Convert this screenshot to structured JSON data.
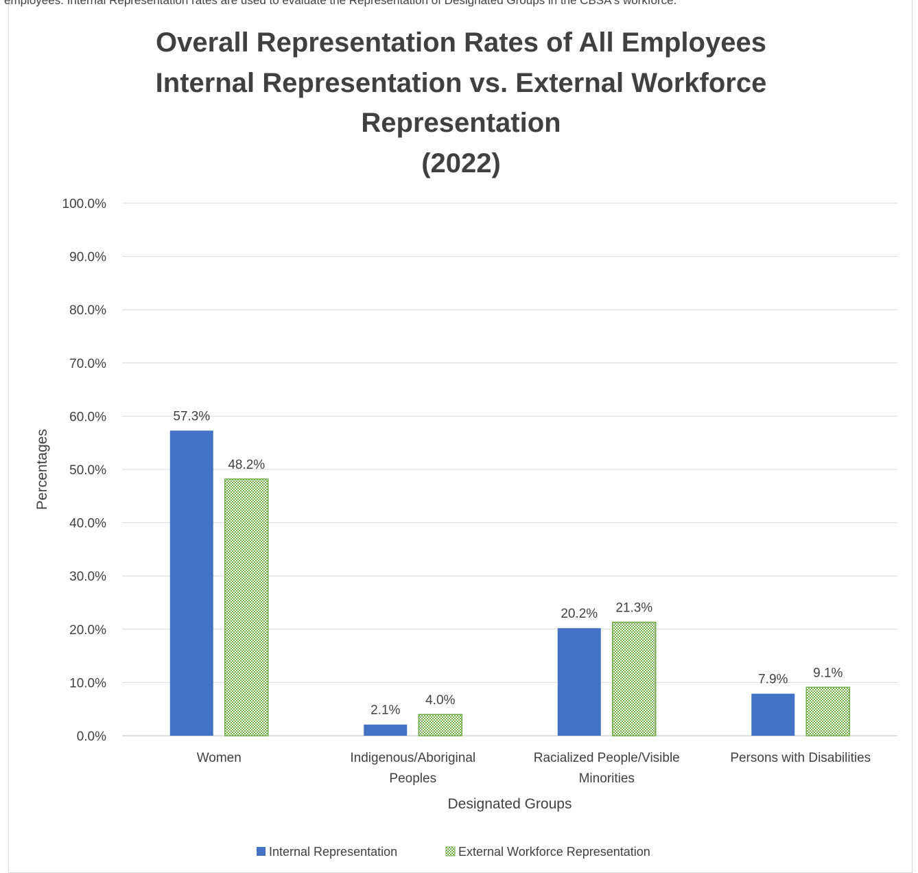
{
  "top_text": "employees. Internal Representation rates are used to evaluate the Representation of Designated Groups in the CBSA's workforce.",
  "chart_data": {
    "type": "bar",
    "title_lines": [
      "Overall Representation Rates of All Employees",
      "Internal Representation vs. External Workforce",
      "Representation",
      "(2022)"
    ],
    "xlabel": "Designated Groups",
    "ylabel": "Percentages",
    "ylim": [
      0,
      100
    ],
    "yticks": [
      "0.0%",
      "10.0%",
      "20.0%",
      "30.0%",
      "40.0%",
      "50.0%",
      "60.0%",
      "70.0%",
      "80.0%",
      "90.0%",
      "100.0%"
    ],
    "grid": true,
    "legend_position": "bottom",
    "categories": [
      [
        "Women"
      ],
      [
        "Indigenous/Aboriginal",
        "Peoples"
      ],
      [
        "Racialized People/Visible",
        "Minorities"
      ],
      [
        "Persons with Disabilities"
      ]
    ],
    "series": [
      {
        "name": "Internal Representation",
        "values": [
          57.3,
          2.1,
          20.2,
          7.9
        ],
        "labels": [
          "57.3%",
          "2.1%",
          "20.2%",
          "7.9%"
        ],
        "color": "#4472c4",
        "pattern": "solid"
      },
      {
        "name": "External Workforce Representation",
        "values": [
          48.2,
          4.0,
          21.3,
          9.1
        ],
        "labels": [
          "48.2%",
          "4.0%",
          "21.3%",
          "9.1%"
        ],
        "color": "#70ad47",
        "pattern": "dotted-grid"
      }
    ]
  }
}
